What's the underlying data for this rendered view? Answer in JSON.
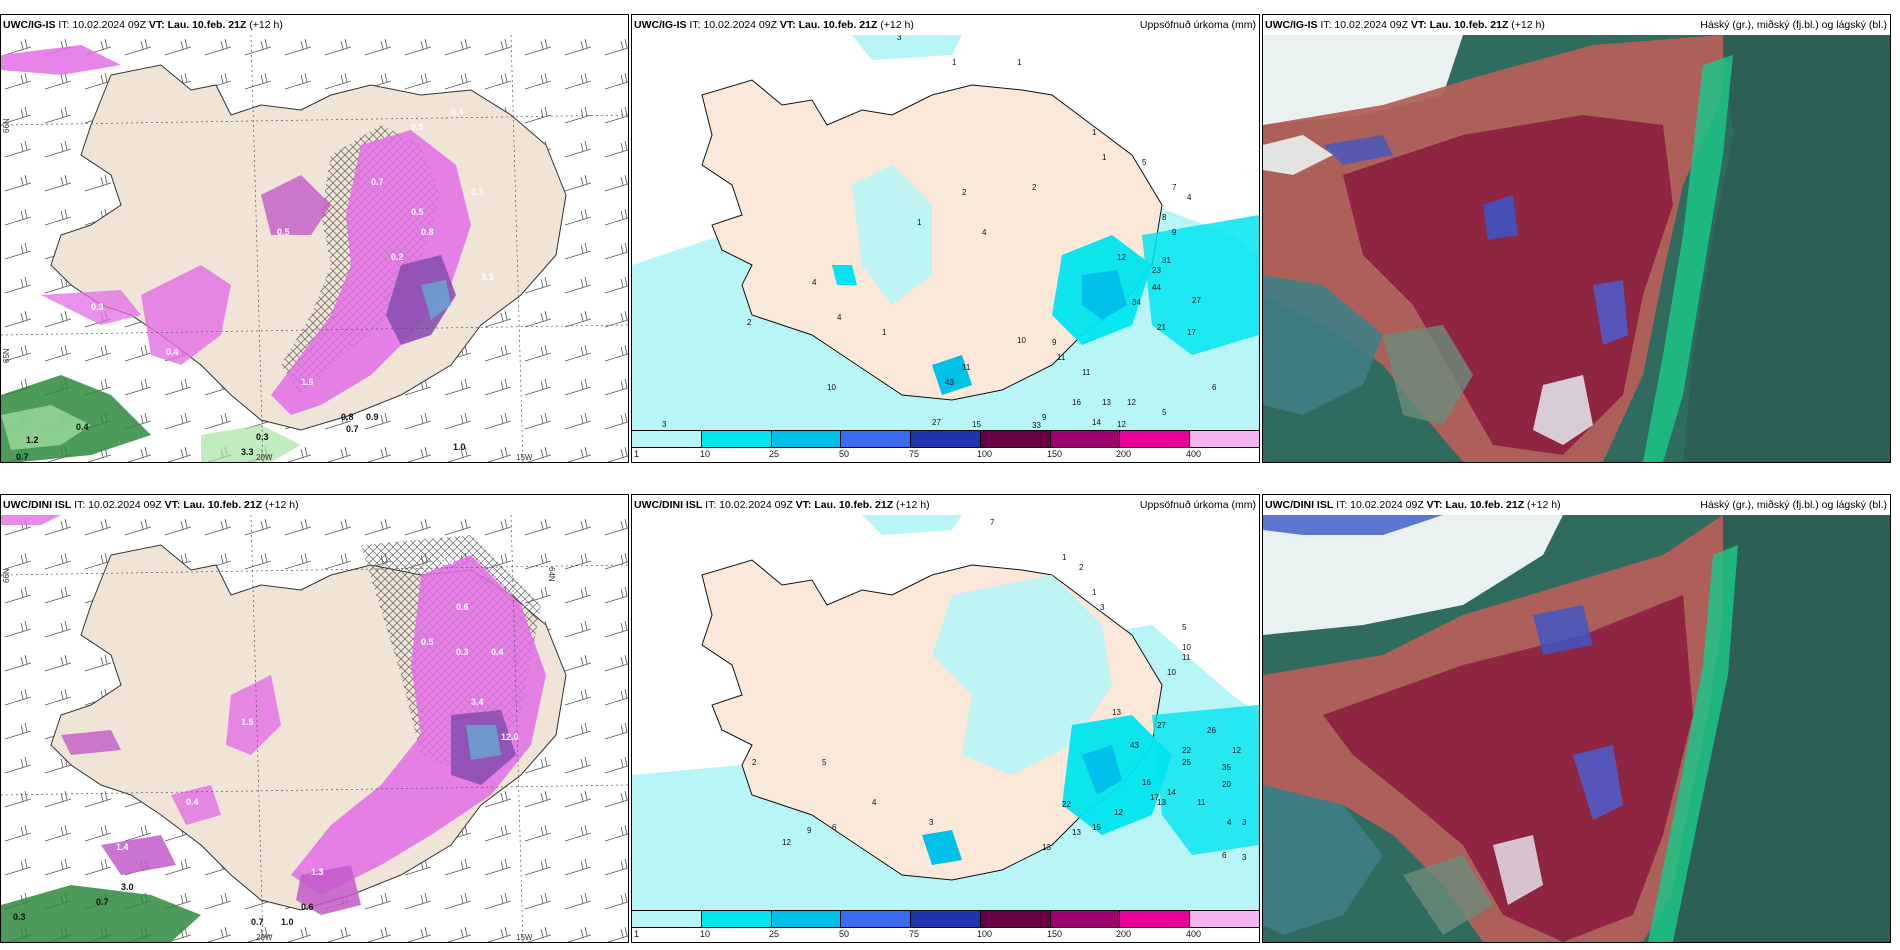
{
  "panels_top": {
    "model": "UWC/IG-IS",
    "it": "IT: 10.02.2024 09Z",
    "vt_label": "VT:",
    "vt_value": "Lau. 10.feb. 21Z",
    "lead": "(+12 h)"
  },
  "panels_bottom": {
    "model": "UWC/DINI ISL",
    "it": "IT: 10.02.2024 09Z",
    "vt_label": "VT:",
    "vt_value": "Lau. 10.feb. 21Z",
    "lead": "(+12 h)"
  },
  "titles": {
    "precip": "Uppsöfnuð úrkoma (mm)",
    "clouds": "Háský (gr.), miðský (fj.bl.) og lágský (bl.)"
  },
  "grid_labels": {
    "lon_20w": "20W",
    "lon_15w": "15W",
    "lat_66n": "66N",
    "lat_64n": "64N",
    "lat_65n": "65N"
  },
  "legend": {
    "ticks": [
      "1",
      "10",
      "25",
      "50",
      "75",
      "100",
      "150",
      "200",
      "400"
    ],
    "colors": [
      "#b7f5f7",
      "#00e5ee",
      "#00bfe8",
      "#3b6cf0",
      "#2233b0",
      "#6a0044",
      "#a0006e",
      "#e8009a",
      "#f5b3f0"
    ]
  },
  "precip_top_labels": [
    "3",
    "1",
    "1",
    "1",
    "1",
    "5",
    "7",
    "4",
    "2",
    "2",
    "8",
    "9",
    "1",
    "4",
    "12",
    "23",
    "31",
    "44",
    "34",
    "27",
    "21",
    "17",
    "2",
    "4",
    "4",
    "1",
    "10",
    "9",
    "11",
    "11",
    "6",
    "10",
    "11",
    "16",
    "13",
    "12",
    "5",
    "9",
    "14",
    "12",
    "27",
    "15",
    "33",
    "3",
    "43"
  ],
  "precip_bottom_labels": [
    "7",
    "1",
    "2",
    "1",
    "3",
    "5",
    "10",
    "11",
    "10",
    "13",
    "27",
    "43",
    "22",
    "26",
    "12",
    "35",
    "20",
    "14",
    "25",
    "13",
    "11",
    "16",
    "17",
    "12",
    "13",
    "22",
    "15",
    "4",
    "3",
    "6",
    "3",
    "12",
    "9",
    "6",
    "2",
    "5",
    "4",
    "13",
    "3"
  ],
  "temp_top_labels": [
    "0.5",
    "0.4",
    "0.7",
    "0.5",
    "0.8",
    "0.3",
    "0.5",
    "0.2",
    "3.3",
    "0.3",
    "0.7",
    "0.4",
    "1.6",
    "2.6",
    "0.8",
    "0.9",
    "0.7",
    "1.0",
    "1.2",
    "0.7",
    "0.3",
    "0.4",
    "3.3"
  ],
  "temp_bottom_labels": [
    "0.4",
    "0.6",
    "0.5",
    "0.3",
    "0.4",
    "3.4",
    "1.5",
    "0.4",
    "1.4",
    "1.3",
    "3.0",
    "0.7",
    "0.7",
    "1.0",
    "0.6",
    "0.3",
    "12.0"
  ]
}
